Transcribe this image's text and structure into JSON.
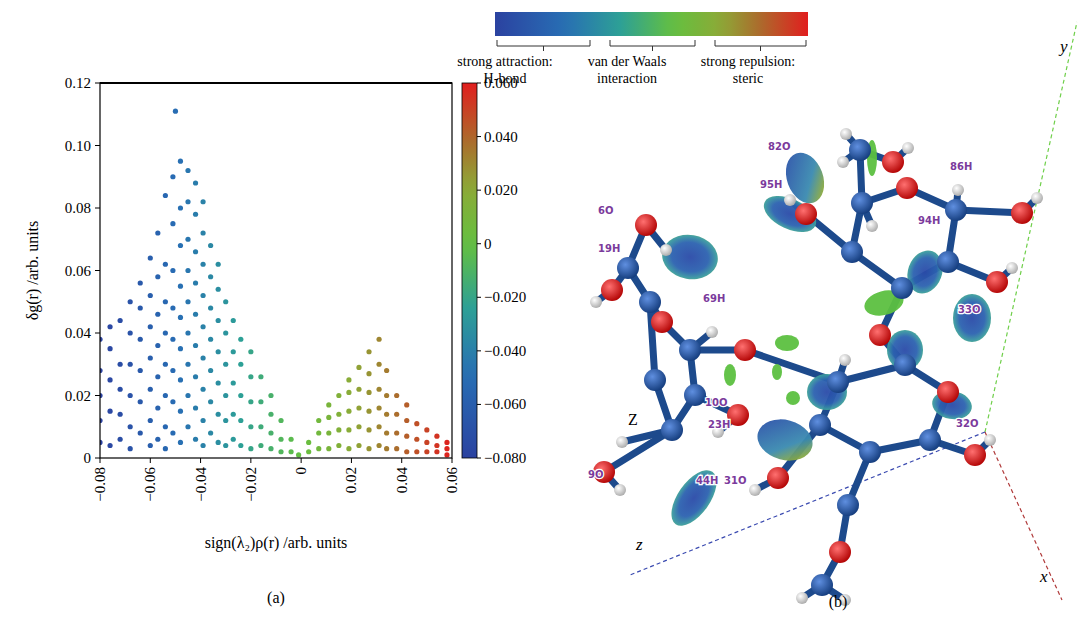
{
  "chart_data": {
    "type": "scatter",
    "x_label": "sign(λ₂)ρ(r) /arb. units",
    "y_label": "δg(r) /arb. units",
    "xlim": [
      -0.08,
      0.06
    ],
    "ylim": [
      0,
      0.12
    ],
    "xticks": [
      {
        "value": -0.08,
        "label": "−0.08"
      },
      {
        "value": -0.06,
        "label": "−0.06"
      },
      {
        "value": -0.04,
        "label": "−0.04"
      },
      {
        "value": -0.02,
        "label": "−0.02"
      },
      0,
      0.02,
      0.04,
      0.06
    ],
    "yticks": [
      0,
      0.02,
      0.04,
      0.06,
      0.08,
      {
        "value": 0.1,
        "label": "0.10"
      },
      0.12
    ],
    "grid": false,
    "marker": "dot",
    "colorbar_range": [
      -0.08,
      0.06
    ],
    "colorbar_ticks": [
      {
        "value": 0.06,
        "label": "0.060"
      },
      {
        "value": 0.04,
        "label": "0.040"
      },
      {
        "value": 0.02,
        "label": "0.020"
      },
      0,
      {
        "value": -0.02,
        "label": "−0.020"
      },
      {
        "value": -0.04,
        "label": "−0.040"
      },
      {
        "value": -0.06,
        "label": "−0.060"
      },
      {
        "value": -0.08,
        "label": "−0.080"
      }
    ],
    "x": [
      -0.08,
      -0.08,
      -0.08,
      -0.08,
      -0.08,
      -0.076,
      -0.076,
      -0.076,
      -0.076,
      -0.076,
      -0.072,
      -0.072,
      -0.072,
      -0.072,
      -0.072,
      -0.068,
      -0.068,
      -0.068,
      -0.068,
      -0.068,
      -0.068,
      -0.064,
      -0.064,
      -0.064,
      -0.064,
      -0.064,
      -0.064,
      -0.06,
      -0.06,
      -0.06,
      -0.06,
      -0.06,
      -0.06,
      -0.06,
      -0.057,
      -0.057,
      -0.057,
      -0.057,
      -0.057,
      -0.057,
      -0.057,
      -0.054,
      -0.054,
      -0.054,
      -0.054,
      -0.054,
      -0.054,
      -0.054,
      -0.054,
      -0.051,
      -0.051,
      -0.051,
      -0.051,
      -0.051,
      -0.051,
      -0.051,
      -0.051,
      -0.05,
      -0.048,
      -0.048,
      -0.048,
      -0.048,
      -0.048,
      -0.048,
      -0.048,
      -0.048,
      -0.048,
      -0.045,
      -0.045,
      -0.045,
      -0.045,
      -0.045,
      -0.045,
      -0.045,
      -0.045,
      -0.045,
      -0.042,
      -0.042,
      -0.042,
      -0.042,
      -0.042,
      -0.042,
      -0.042,
      -0.042,
      -0.042,
      -0.039,
      -0.039,
      -0.039,
      -0.039,
      -0.039,
      -0.039,
      -0.039,
      -0.039,
      -0.039,
      -0.036,
      -0.036,
      -0.036,
      -0.036,
      -0.036,
      -0.036,
      -0.036,
      -0.033,
      -0.033,
      -0.033,
      -0.033,
      -0.033,
      -0.033,
      -0.033,
      -0.03,
      -0.03,
      -0.03,
      -0.03,
      -0.03,
      -0.03,
      -0.027,
      -0.027,
      -0.027,
      -0.027,
      -0.027,
      -0.024,
      -0.024,
      -0.024,
      -0.024,
      -0.024,
      -0.02,
      -0.02,
      -0.02,
      -0.02,
      -0.02,
      -0.016,
      -0.016,
      -0.016,
      -0.016,
      -0.012,
      -0.012,
      -0.012,
      -0.012,
      -0.008,
      -0.008,
      -0.008,
      -0.004,
      -0.004,
      -0.001,
      0.003,
      0.003,
      0.007,
      0.007,
      0.007,
      0.011,
      0.011,
      0.011,
      0.011,
      0.015,
      0.015,
      0.015,
      0.015,
      0.019,
      0.019,
      0.019,
      0.019,
      0.019,
      0.023,
      0.023,
      0.023,
      0.023,
      0.023,
      0.027,
      0.027,
      0.027,
      0.027,
      0.027,
      0.027,
      0.031,
      0.031,
      0.031,
      0.031,
      0.031,
      0.031,
      0.034,
      0.034,
      0.034,
      0.034,
      0.034,
      0.038,
      0.038,
      0.038,
      0.038,
      0.042,
      0.042,
      0.042,
      0.042,
      0.046,
      0.046,
      0.046,
      0.05,
      0.05,
      0.05,
      0.054,
      0.054,
      0.054,
      0.058,
      0.058,
      0.058
    ],
    "values": [
      0.005,
      0.012,
      0.02,
      0.028,
      0.038,
      0.004,
      0.015,
      0.025,
      0.035,
      0.042,
      0.006,
      0.014,
      0.022,
      0.03,
      0.044,
      0.003,
      0.01,
      0.02,
      0.03,
      0.04,
      0.05,
      0.008,
      0.018,
      0.028,
      0.038,
      0.048,
      0.056,
      0.004,
      0.012,
      0.022,
      0.032,
      0.042,
      0.052,
      0.064,
      0.006,
      0.016,
      0.026,
      0.036,
      0.046,
      0.058,
      0.072,
      0.003,
      0.01,
      0.02,
      0.03,
      0.04,
      0.05,
      0.062,
      0.084,
      0.008,
      0.018,
      0.028,
      0.038,
      0.048,
      0.06,
      0.075,
      0.09,
      0.111,
      0.005,
      0.015,
      0.025,
      0.035,
      0.045,
      0.055,
      0.068,
      0.08,
      0.095,
      0.01,
      0.02,
      0.03,
      0.04,
      0.05,
      0.06,
      0.07,
      0.082,
      0.092,
      0.006,
      0.016,
      0.026,
      0.036,
      0.046,
      0.056,
      0.066,
      0.078,
      0.088,
      0.004,
      0.012,
      0.022,
      0.032,
      0.042,
      0.052,
      0.062,
      0.072,
      0.082,
      0.008,
      0.018,
      0.028,
      0.038,
      0.048,
      0.058,
      0.068,
      0.005,
      0.014,
      0.024,
      0.034,
      0.044,
      0.054,
      0.062,
      0.004,
      0.012,
      0.02,
      0.03,
      0.04,
      0.05,
      0.006,
      0.014,
      0.024,
      0.034,
      0.044,
      0.004,
      0.012,
      0.02,
      0.03,
      0.038,
      0.003,
      0.01,
      0.018,
      0.026,
      0.034,
      0.004,
      0.01,
      0.018,
      0.026,
      0.003,
      0.008,
      0.014,
      0.02,
      0.002,
      0.006,
      0.012,
      0.002,
      0.006,
      0.001,
      0.002,
      0.005,
      0.003,
      0.008,
      0.012,
      0.003,
      0.008,
      0.013,
      0.017,
      0.004,
      0.009,
      0.014,
      0.02,
      0.003,
      0.009,
      0.015,
      0.021,
      0.025,
      0.004,
      0.01,
      0.016,
      0.022,
      0.029,
      0.003,
      0.009,
      0.015,
      0.021,
      0.027,
      0.034,
      0.004,
      0.01,
      0.016,
      0.022,
      0.03,
      0.038,
      0.003,
      0.008,
      0.014,
      0.02,
      0.028,
      0.003,
      0.008,
      0.014,
      0.02,
      0.002,
      0.007,
      0.012,
      0.017,
      0.002,
      0.006,
      0.011,
      0.002,
      0.005,
      0.009,
      0.002,
      0.004,
      0.007,
      0.001,
      0.003,
      0.005
    ]
  },
  "panel_labels": [
    "(a)",
    "(b)"
  ],
  "diagram": {
    "legend": [
      {
        "lines": [
          "strong attraction:",
          "H-bond"
        ]
      },
      {
        "lines": [
          "van der Waals",
          "interaction"
        ]
      },
      {
        "lines": [
          "strong repulsion:",
          "steric"
        ]
      }
    ],
    "atom_labels": [
      "82O",
      "95H",
      "86H",
      "6O",
      "94H",
      "19H",
      "69H",
      "33O",
      "10O",
      "23H",
      "32O",
      "9O",
      "44H",
      "31O"
    ],
    "marker_label": "Z",
    "axes": [
      "x",
      "y",
      "z"
    ]
  }
}
